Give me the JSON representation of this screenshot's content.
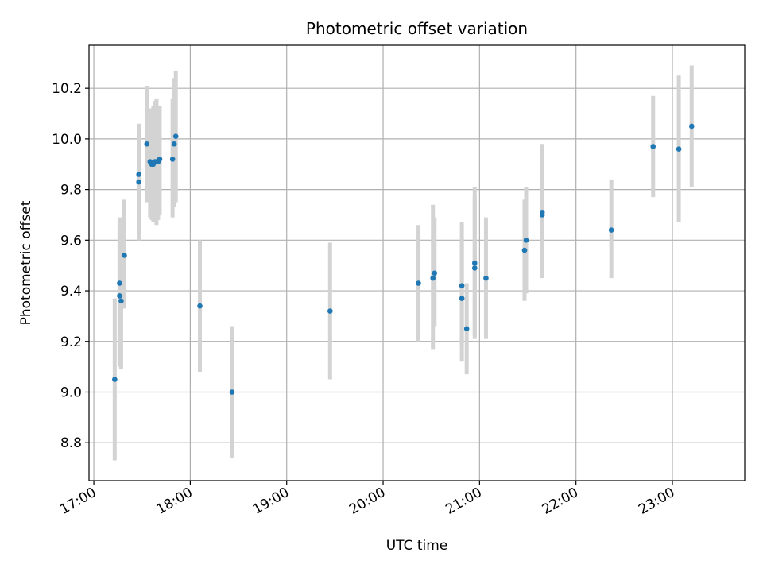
{
  "chart_data": {
    "type": "scatter",
    "title": "Photometric offset variation",
    "xlabel": "UTC time",
    "ylabel": "Photometric offset",
    "x_tick_labels": [
      "17:00",
      "18:00",
      "19:00",
      "20:00",
      "21:00",
      "22:00",
      "23:00"
    ],
    "y_tick_labels": [
      "8.8",
      "9.0",
      "9.2",
      "9.4",
      "9.6",
      "9.8",
      "10.0",
      "10.2"
    ],
    "x_ticks_hours": [
      17,
      18,
      19,
      20,
      21,
      22,
      23
    ],
    "y_ticks": [
      8.8,
      9.0,
      9.2,
      9.4,
      9.6,
      9.8,
      10.0,
      10.2
    ],
    "xlim_hours": [
      16.95,
      23.75
    ],
    "ylim": [
      8.65,
      10.37
    ],
    "grid": true,
    "marker_color": "#1f77b4",
    "errorbar_color": "#d3d3d3",
    "points": [
      {
        "t": "17:13",
        "y": 9.05,
        "lo": 8.73,
        "hi": 9.37
      },
      {
        "t": "17:16",
        "y": 9.38,
        "lo": 9.1,
        "hi": 9.65
      },
      {
        "t": "17:16",
        "y": 9.43,
        "lo": 9.12,
        "hi": 9.69
      },
      {
        "t": "17:17",
        "y": 9.36,
        "lo": 9.09,
        "hi": 9.63
      },
      {
        "t": "17:19",
        "y": 9.54,
        "lo": 9.33,
        "hi": 9.76
      },
      {
        "t": "17:28",
        "y": 9.86,
        "lo": 9.66,
        "hi": 10.06
      },
      {
        "t": "17:28",
        "y": 9.83,
        "lo": 9.6,
        "hi": 10.04
      },
      {
        "t": "17:33",
        "y": 9.98,
        "lo": 9.75,
        "hi": 10.21
      },
      {
        "t": "17:35",
        "y": 9.91,
        "lo": 9.69,
        "hi": 10.12
      },
      {
        "t": "17:36",
        "y": 9.9,
        "lo": 9.68,
        "hi": 10.12
      },
      {
        "t": "17:37",
        "y": 9.9,
        "lo": 9.67,
        "hi": 10.13
      },
      {
        "t": "17:38",
        "y": 9.91,
        "lo": 9.67,
        "hi": 10.15
      },
      {
        "t": "17:39",
        "y": 9.91,
        "lo": 9.66,
        "hi": 10.16
      },
      {
        "t": "17:40",
        "y": 9.91,
        "lo": 9.68,
        "hi": 10.13
      },
      {
        "t": "17:41",
        "y": 9.92,
        "lo": 9.7,
        "hi": 10.13
      },
      {
        "t": "17:49",
        "y": 9.92,
        "lo": 9.69,
        "hi": 10.16
      },
      {
        "t": "17:50",
        "y": 9.98,
        "lo": 9.73,
        "hi": 10.24
      },
      {
        "t": "17:51",
        "y": 10.01,
        "lo": 9.75,
        "hi": 10.27
      },
      {
        "t": "18:06",
        "y": 9.34,
        "lo": 9.08,
        "hi": 9.6
      },
      {
        "t": "18:26",
        "y": 9.0,
        "lo": 8.74,
        "hi": 9.26
      },
      {
        "t": "19:27",
        "y": 9.32,
        "lo": 9.05,
        "hi": 9.59
      },
      {
        "t": "20:22",
        "y": 9.43,
        "lo": 9.2,
        "hi": 9.66
      },
      {
        "t": "20:31",
        "y": 9.45,
        "lo": 9.17,
        "hi": 9.74
      },
      {
        "t": "20:32",
        "y": 9.47,
        "lo": 9.26,
        "hi": 9.69
      },
      {
        "t": "20:49",
        "y": 9.42,
        "lo": 9.18,
        "hi": 9.67
      },
      {
        "t": "20:49",
        "y": 9.37,
        "lo": 9.12,
        "hi": 9.61
      },
      {
        "t": "20:52",
        "y": 9.25,
        "lo": 9.07,
        "hi": 9.43
      },
      {
        "t": "20:57",
        "y": 9.51,
        "lo": 9.21,
        "hi": 9.81
      },
      {
        "t": "20:57",
        "y": 9.49,
        "lo": 9.22,
        "hi": 9.77
      },
      {
        "t": "21:04",
        "y": 9.45,
        "lo": 9.21,
        "hi": 9.69
      },
      {
        "t": "21:28",
        "y": 9.56,
        "lo": 9.36,
        "hi": 9.76
      },
      {
        "t": "21:29",
        "y": 9.6,
        "lo": 9.39,
        "hi": 9.81
      },
      {
        "t": "21:39",
        "y": 9.71,
        "lo": 9.47,
        "hi": 9.98
      },
      {
        "t": "21:39",
        "y": 9.7,
        "lo": 9.45,
        "hi": 9.94
      },
      {
        "t": "22:22",
        "y": 9.64,
        "lo": 9.45,
        "hi": 9.84
      },
      {
        "t": "22:48",
        "y": 9.97,
        "lo": 9.77,
        "hi": 10.17
      },
      {
        "t": "23:04",
        "y": 9.96,
        "lo": 9.67,
        "hi": 10.25
      },
      {
        "t": "23:12",
        "y": 10.05,
        "lo": 9.81,
        "hi": 10.29
      }
    ]
  }
}
